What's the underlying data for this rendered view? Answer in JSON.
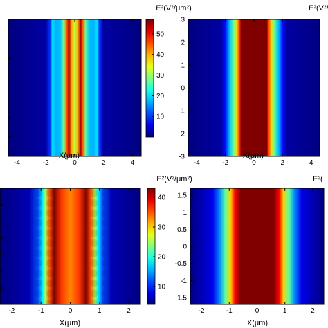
{
  "chart_data": [
    {
      "type": "heatmap",
      "panel": "top-left",
      "xlabel": "X(μm)",
      "colorbar_label": "E²(V²/μm²)",
      "xlim": [
        -4.6,
        4.6
      ],
      "xticks": [
        -4,
        -2,
        0,
        2,
        4
      ],
      "yticks": [],
      "colorbar_range": [
        0,
        57
      ],
      "colorbar_ticks": [
        10,
        20,
        30,
        40,
        50
      ],
      "profile_x": [
        -4.6,
        -2.0,
        -1.7,
        -1.55,
        -1.3,
        -1.0,
        -0.75,
        -0.55,
        -0.4,
        -0.2,
        0.0,
        0.2,
        0.4,
        0.55,
        0.75,
        1.0,
        1.3,
        1.55,
        1.7,
        2.0,
        4.6
      ],
      "profile_e2": [
        0,
        2,
        10,
        20,
        17,
        18,
        28,
        45,
        55,
        40,
        32,
        40,
        55,
        45,
        28,
        18,
        17,
        20,
        10,
        2,
        0
      ]
    },
    {
      "type": "heatmap",
      "panel": "top-right",
      "xlabel": "X(μm)",
      "colorbar_label": "E²(V²/",
      "xlim": [
        -4.6,
        4.6
      ],
      "ylim": [
        -3,
        3
      ],
      "xticks": [
        -4,
        -2,
        0,
        2,
        4
      ],
      "yticks": [
        -3,
        -2,
        -1,
        0,
        1,
        2,
        3
      ],
      "colorbar_range": [
        0,
        57
      ],
      "profile_x": [
        -4.6,
        -2.3,
        -2.0,
        -1.7,
        -1.4,
        -1.2,
        -1.0,
        -0.9,
        0.0,
        0.9,
        1.0,
        1.2,
        1.4,
        1.7,
        2.0,
        2.3,
        4.6
      ],
      "profile_e2": [
        0,
        2,
        8,
        18,
        28,
        38,
        48,
        57,
        57,
        57,
        48,
        38,
        28,
        18,
        8,
        2,
        0
      ]
    },
    {
      "type": "heatmap",
      "panel": "bottom-left",
      "xlabel": "X(μm)",
      "colorbar_label": "E²(V²/μm²)",
      "xlim": [
        -2.4,
        2.4
      ],
      "xticks": [
        -2,
        -1,
        0,
        1,
        2
      ],
      "yticks": [],
      "colorbar_range": [
        4,
        43
      ],
      "colorbar_ticks": [
        10,
        20,
        30,
        40
      ],
      "profile_x": [
        -2.4,
        -1.4,
        -1.1,
        -0.95,
        -0.85,
        -0.7,
        -0.55,
        -0.3,
        0.0,
        0.3,
        0.55,
        0.7,
        0.85,
        0.95,
        1.1,
        1.4,
        2.4
      ],
      "profile_e2": [
        4,
        6,
        12,
        18,
        25,
        35,
        43,
        36,
        33,
        36,
        43,
        35,
        25,
        18,
        12,
        6,
        4
      ]
    },
    {
      "type": "heatmap",
      "panel": "bottom-right",
      "xlabel": "X(μm)",
      "colorbar_label": "E²(",
      "xlim": [
        -2.4,
        2.4
      ],
      "ylim": [
        -1.7,
        1.7
      ],
      "xticks": [
        -2,
        -1,
        0,
        1,
        2
      ],
      "yticks": [
        -1.5,
        -1,
        -0.5,
        0,
        0.5,
        1,
        1.5
      ],
      "colorbar_range": [
        4,
        43
      ],
      "profile_x": [
        -2.4,
        -1.6,
        -1.35,
        -1.15,
        -0.95,
        -0.8,
        -0.6,
        0.0,
        0.6,
        0.8,
        0.95,
        1.15,
        1.35,
        1.6,
        2.4
      ],
      "profile_e2": [
        4,
        8,
        14,
        22,
        30,
        38,
        43,
        43,
        43,
        38,
        30,
        22,
        14,
        8,
        4
      ]
    }
  ]
}
